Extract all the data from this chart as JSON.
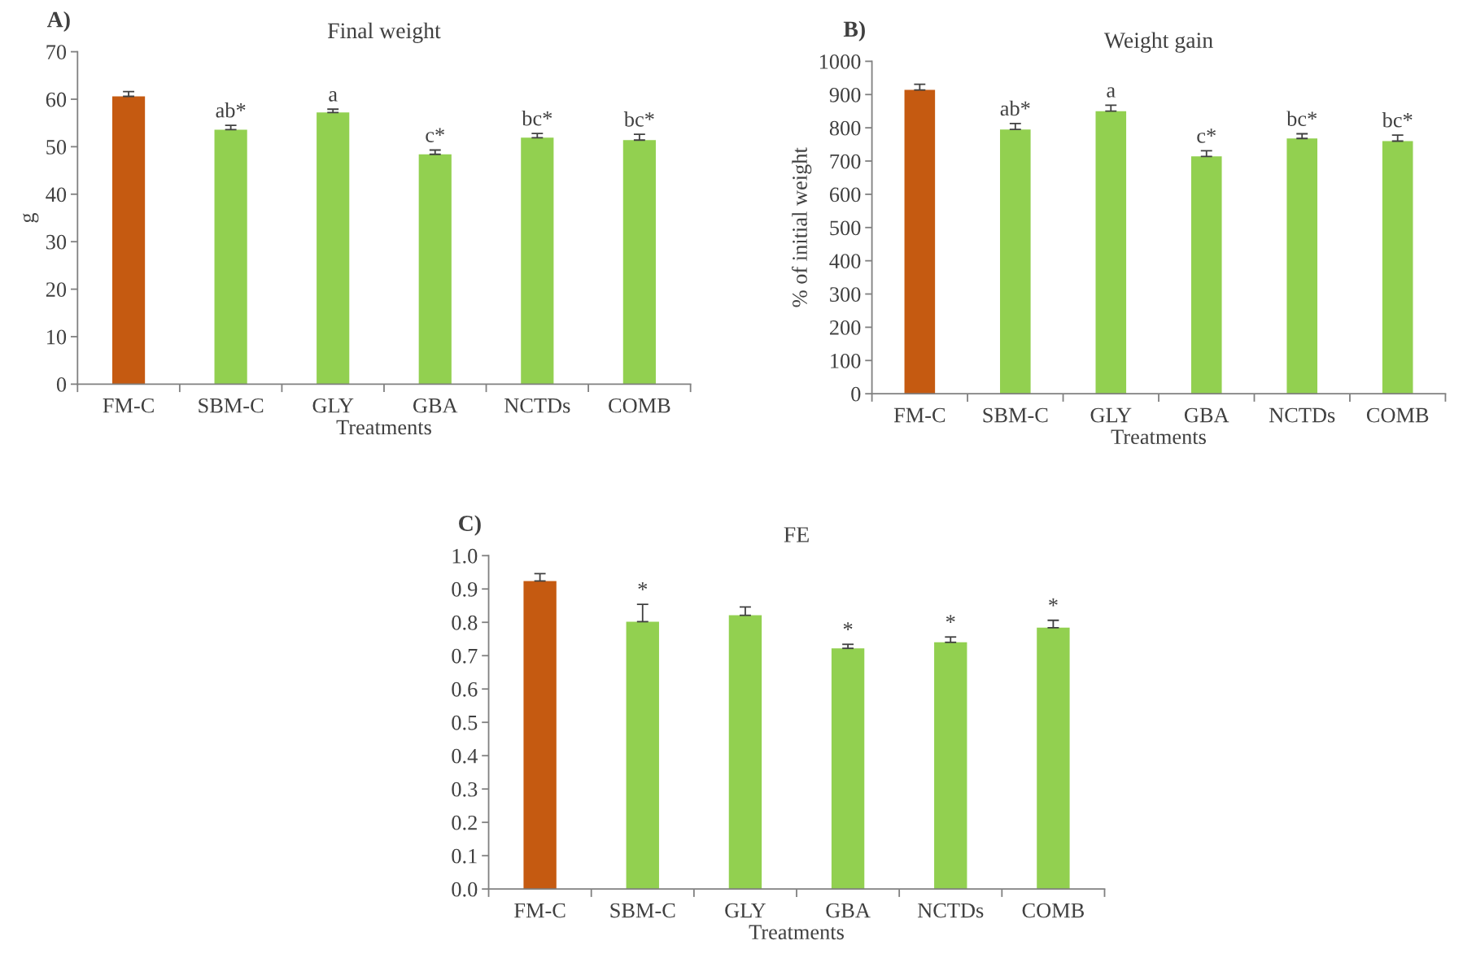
{
  "chart_data": [
    {
      "type": "bar",
      "title": "Final weight",
      "xlabel": "Treatments",
      "ylabel": "g",
      "categories": [
        "FM-C",
        "SBM-C",
        "GLY",
        "GBA",
        "NCTDs",
        "COMB"
      ],
      "values": [
        60.6,
        53.6,
        57.2,
        48.4,
        51.9,
        51.4
      ],
      "errors": [
        [
          60.6,
          61.6
        ],
        [
          53.6,
          54.5
        ],
        [
          57.2,
          57.9
        ],
        [
          48.4,
          49.3
        ],
        [
          51.9,
          52.8
        ],
        [
          51.4,
          52.6
        ]
      ],
      "colors": [
        "#c55a11",
        "#92d050",
        "#92d050",
        "#92d050",
        "#92d050",
        "#92d050"
      ],
      "ylim": [
        0,
        70
      ],
      "yticks": [
        0,
        10,
        20,
        30,
        40,
        50,
        60,
        70
      ],
      "grid": false,
      "legend": false,
      "annotations": [
        "A)",
        {
          "text": "ab*",
          "x": "SBM-C",
          "y": 54.5
        },
        {
          "text": "a",
          "x": "GLY",
          "y": 57.9
        },
        {
          "text": "c*",
          "x": "GBA",
          "y": 49.3
        },
        {
          "text": "bc*",
          "x": "NCTDs",
          "y": 52.8
        },
        {
          "text": "bc*",
          "x": "COMB",
          "y": 52.6
        }
      ]
    },
    {
      "type": "bar",
      "title": "Weight gain",
      "xlabel": "Treatments",
      "ylabel": "% of initial weight",
      "categories": [
        "FM-C",
        "SBM-C",
        "GLY",
        "GBA",
        "NCTDs",
        "COMB"
      ],
      "values": [
        914,
        795,
        850,
        714,
        768,
        760
      ],
      "errors": [
        [
          914,
          931
        ],
        [
          795,
          813
        ],
        [
          850,
          868
        ],
        [
          714,
          731
        ],
        [
          768,
          782
        ],
        [
          760,
          778
        ]
      ],
      "colors": [
        "#c55a11",
        "#92d050",
        "#92d050",
        "#92d050",
        "#92d050",
        "#92d050"
      ],
      "ylim": [
        0,
        1000
      ],
      "yticks": [
        0,
        100,
        200,
        300,
        400,
        500,
        600,
        700,
        800,
        900,
        1000
      ],
      "grid": false,
      "legend": false,
      "annotations": [
        "B)",
        {
          "text": "ab*",
          "x": "SBM-C",
          "y": 813
        },
        {
          "text": "a",
          "x": "GLY",
          "y": 868
        },
        {
          "text": "c*",
          "x": "GBA",
          "y": 731
        },
        {
          "text": "bc*",
          "x": "NCTDs",
          "y": 782
        },
        {
          "text": "bc*",
          "x": "COMB",
          "y": 778
        }
      ]
    },
    {
      "type": "bar",
      "title": "FE",
      "xlabel": "Treatments",
      "categories": [
        "FM-C",
        "SBM-C",
        "GLY",
        "GBA",
        "NCTDs",
        "COMB"
      ],
      "values": [
        0.924,
        0.802,
        0.821,
        0.722,
        0.74,
        0.784
      ],
      "errors": [
        [
          0.924,
          0.946
        ],
        [
          0.802,
          0.854
        ],
        [
          0.821,
          0.846
        ],
        [
          0.722,
          0.734
        ],
        [
          0.74,
          0.756
        ],
        [
          0.784,
          0.806
        ]
      ],
      "colors": [
        "#c55a11",
        "#92d050",
        "#92d050",
        "#92d050",
        "#92d050",
        "#92d050"
      ],
      "ylim": [
        0,
        1.0
      ],
      "yticks": [
        {
          "value": 0,
          "label": "0.0"
        },
        0.1,
        0.2,
        0.3,
        0.4,
        0.5,
        0.6,
        0.7,
        0.8,
        0.9,
        {
          "value": 1.0,
          "label": "1.0"
        }
      ],
      "grid": false,
      "legend": false,
      "annotations": [
        "C)",
        {
          "text": "*",
          "x": "SBM-C",
          "y": 0.854
        },
        {
          "text": "*",
          "x": "GBA",
          "y": 0.734
        },
        {
          "text": "*",
          "x": "NCTDs",
          "y": 0.756
        },
        {
          "text": "*",
          "x": "COMB",
          "y": 0.806
        }
      ]
    }
  ]
}
